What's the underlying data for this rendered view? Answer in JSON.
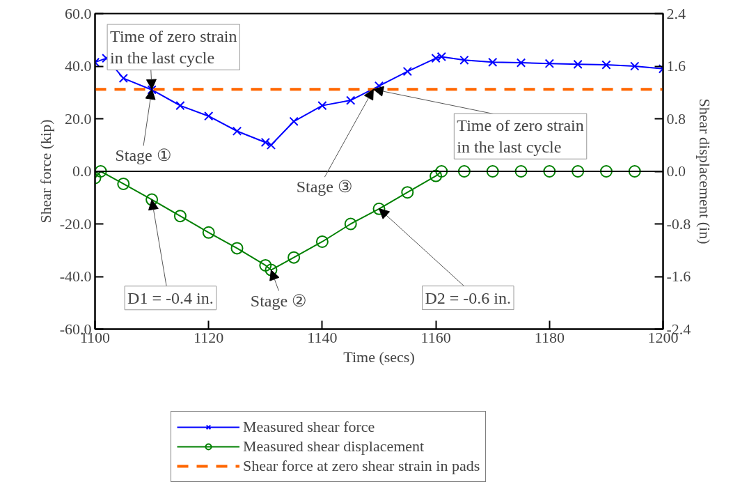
{
  "chart_data": {
    "type": "line",
    "xlabel": "Time (secs)",
    "ylabel": "Shear force (kip)",
    "y2label": "Shear displacement (in)",
    "xlim": [
      1100,
      1200
    ],
    "xticks": [
      1100,
      1120,
      1140,
      1160,
      1180,
      1200
    ],
    "ylim": [
      -60,
      60
    ],
    "yticks": [
      {
        "value": 60,
        "label": "60.0"
      },
      {
        "value": 40,
        "label": "40.0"
      },
      {
        "value": 20,
        "label": "20.0"
      },
      {
        "value": 0,
        "label": "0.0"
      },
      {
        "value": -20,
        "label": "-20.0"
      },
      {
        "value": -40,
        "label": "-40.0"
      },
      {
        "value": -60,
        "label": "-60.0"
      }
    ],
    "y2lim": [
      -2.4,
      2.4
    ],
    "y2ticks": [
      {
        "value": 2.4,
        "label": "2.4"
      },
      {
        "value": 1.6,
        "label": "1.6"
      },
      {
        "value": 0.8,
        "label": "0.8"
      },
      {
        "value": 0,
        "label": "0.0"
      },
      {
        "value": -0.8,
        "label": "-0.8"
      },
      {
        "value": -1.6,
        "label": "-1.6"
      },
      {
        "value": -2.4,
        "label": "-2.4"
      }
    ],
    "grid": false,
    "legend": "bottom",
    "series": [
      {
        "name": "Measured shear force",
        "color": "#0000ff",
        "marker": "cross",
        "x": [
          1100,
          1102,
          1105,
          1110,
          1115,
          1120,
          1125,
          1130,
          1131,
          1135,
          1140,
          1145,
          1150,
          1155,
          1160,
          1161,
          1165,
          1170,
          1175,
          1180,
          1185,
          1190,
          1195,
          1200
        ],
        "values": [
          41.5,
          43,
          35.4,
          31,
          25,
          21,
          15.3,
          11,
          10,
          19,
          25,
          27,
          32.5,
          38,
          43,
          43.6,
          42.3,
          41.5,
          41.3,
          41,
          40.7,
          40.5,
          40,
          39
        ]
      },
      {
        "name": "Measured shear displacement",
        "color": "#008000",
        "marker": "circle",
        "axis": "y2",
        "x": [
          1100,
          1101,
          1105,
          1110,
          1115,
          1120,
          1125,
          1130,
          1131,
          1135,
          1140,
          1145,
          1150,
          1155,
          1160,
          1161,
          1165,
          1170,
          1175,
          1180,
          1185,
          1190,
          1195
        ],
        "values": [
          -0.1,
          0,
          -0.19,
          -0.43,
          -0.68,
          -0.93,
          -1.17,
          -1.43,
          -1.5,
          -1.31,
          -1.07,
          -0.8,
          -0.57,
          -0.32,
          -0.07,
          0,
          0,
          0,
          0,
          0,
          0,
          0,
          0
        ]
      }
    ],
    "ref_lines": [
      {
        "axis": "y",
        "value": 31.2,
        "label": "Shear force at zero shear strain in pads",
        "color": "#ff6600",
        "line_style": "dashed"
      },
      {
        "axis": "y",
        "value": 0,
        "color": "#000000"
      }
    ],
    "annotations": [
      {
        "text": "Time of zero strain\nin the last cycle",
        "x": 1110,
        "y": 31.2
      },
      {
        "text": "Time of zero strain\nin the last cycle",
        "x": 1149,
        "y": 31.2
      },
      {
        "text": "Stage ①",
        "x": 1110,
        "y": 31.2
      },
      {
        "text": "Stage ③",
        "x": 1149,
        "y": 31.2
      },
      {
        "text": "Stage ②",
        "x": 1131,
        "y": -37.5
      },
      {
        "text": "D1 = -0.4 in.",
        "x": 1110,
        "y": -10.8
      },
      {
        "text": "D2 = -0.6 in.",
        "x": 1150,
        "y": -14.2
      }
    ]
  }
}
